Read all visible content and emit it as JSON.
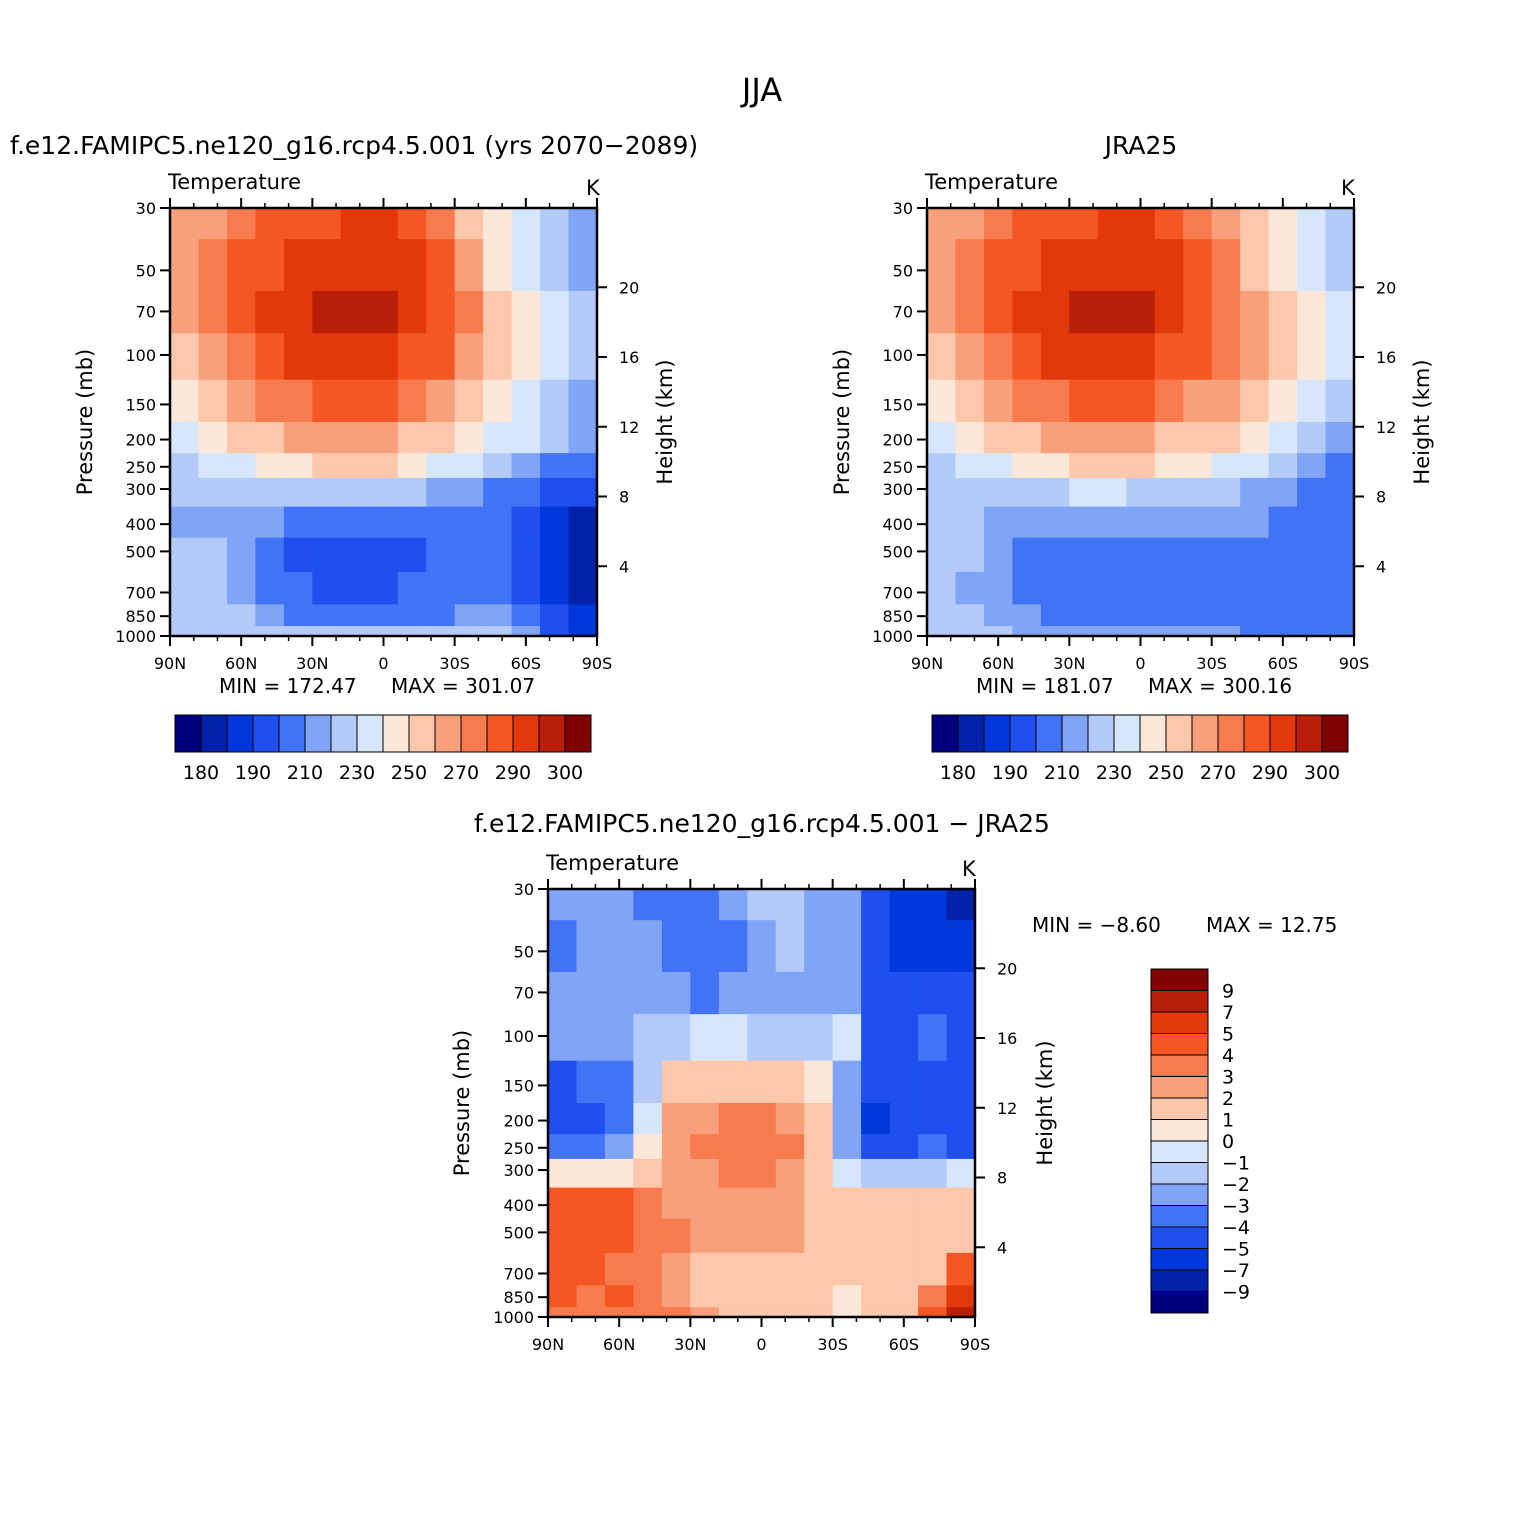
{
  "title": "JJA",
  "colors": {
    "scale": [
      "#00007f",
      "#0021a8",
      "#0037db",
      "#1f4fef",
      "#4272f5",
      "#80a4f6",
      "#b4cbfa",
      "#d7e7fb",
      "#fde7d8",
      "#fcc7ab",
      "#f8a07c",
      "#f77b4e",
      "#f55724",
      "#e1380c",
      "#b81e08",
      "#7f0000"
    ]
  },
  "chart_data": [
    {
      "type": "heatmap",
      "id": "model",
      "title": "f.e12.FAMIPC5.ne120_g16.rcp4.5.001 (yrs 2070−2089)",
      "variable": "Temperature",
      "units": "K",
      "xlabel": "",
      "ylabel": "Pressure (mb)",
      "y2label": "Height (km)",
      "xticks": [
        "90N",
        "60N",
        "30N",
        "0",
        "30S",
        "60S",
        "90S"
      ],
      "yticks": [
        30,
        50,
        70,
        100,
        150,
        200,
        250,
        300,
        400,
        500,
        700,
        850,
        1000
      ],
      "y2ticks": [
        20,
        16,
        12,
        8,
        4
      ],
      "min_label": "MIN = 172.47",
      "max_label": "MAX = 301.07",
      "min": 172.47,
      "max": 301.07,
      "colorbar_labels": [
        "180",
        "190",
        "210",
        "230",
        "250",
        "270",
        "290",
        "300"
      ],
      "grid": [
        [
          10,
          10,
          11,
          12,
          12,
          12,
          13,
          13,
          12,
          11,
          9,
          8,
          7,
          6,
          5
        ],
        [
          10,
          11,
          12,
          12,
          13,
          13,
          13,
          13,
          13,
          12,
          10,
          8,
          7,
          6,
          5
        ],
        [
          10,
          11,
          12,
          13,
          13,
          14,
          14,
          14,
          13,
          12,
          11,
          9,
          8,
          7,
          6
        ],
        [
          9,
          10,
          11,
          12,
          13,
          13,
          13,
          13,
          12,
          12,
          10,
          9,
          8,
          7,
          6
        ],
        [
          8,
          9,
          10,
          11,
          11,
          12,
          12,
          12,
          11,
          10,
          9,
          8,
          7,
          6,
          5
        ],
        [
          7,
          8,
          9,
          9,
          10,
          10,
          10,
          10,
          9,
          9,
          8,
          7,
          7,
          6,
          5
        ],
        [
          6,
          7,
          7,
          8,
          8,
          9,
          9,
          9,
          8,
          7,
          7,
          6,
          5,
          4,
          4
        ],
        [
          6,
          6,
          6,
          6,
          6,
          6,
          6,
          6,
          6,
          5,
          5,
          4,
          4,
          3,
          3
        ],
        [
          5,
          5,
          5,
          5,
          4,
          4,
          4,
          4,
          4,
          4,
          4,
          4,
          3,
          2,
          1
        ],
        [
          6,
          6,
          5,
          4,
          3,
          3,
          3,
          3,
          3,
          4,
          4,
          4,
          3,
          2,
          1
        ],
        [
          6,
          6,
          5,
          4,
          4,
          3,
          3,
          3,
          4,
          4,
          4,
          4,
          3,
          2,
          1
        ],
        [
          6,
          6,
          6,
          5,
          4,
          4,
          4,
          4,
          4,
          4,
          5,
          5,
          4,
          3,
          2
        ],
        [
          6,
          6,
          6,
          6,
          6,
          6,
          6,
          6,
          6,
          6,
          6,
          6,
          5,
          3,
          2
        ]
      ]
    },
    {
      "type": "heatmap",
      "id": "obs",
      "title": "JRA25",
      "variable": "Temperature",
      "units": "K",
      "xlabel": "",
      "ylabel": "Pressure (mb)",
      "y2label": "Height (km)",
      "xticks": [
        "90N",
        "60N",
        "30N",
        "0",
        "30S",
        "60S",
        "90S"
      ],
      "yticks": [
        30,
        50,
        70,
        100,
        150,
        200,
        250,
        300,
        400,
        500,
        700,
        850,
        1000
      ],
      "y2ticks": [
        20,
        16,
        12,
        8,
        4
      ],
      "min_label": "MIN = 181.07",
      "max_label": "MAX = 300.16",
      "min": 181.07,
      "max": 300.16,
      "colorbar_labels": [
        "180",
        "190",
        "210",
        "230",
        "250",
        "270",
        "290",
        "300"
      ],
      "grid": [
        [
          10,
          10,
          11,
          12,
          12,
          12,
          13,
          13,
          12,
          11,
          10,
          9,
          8,
          7,
          6
        ],
        [
          10,
          11,
          12,
          12,
          13,
          13,
          13,
          13,
          13,
          12,
          11,
          9,
          8,
          7,
          6
        ],
        [
          10,
          11,
          12,
          13,
          13,
          14,
          14,
          14,
          13,
          12,
          11,
          10,
          9,
          8,
          7
        ],
        [
          9,
          10,
          11,
          12,
          13,
          13,
          13,
          13,
          12,
          12,
          11,
          10,
          9,
          8,
          7
        ],
        [
          8,
          9,
          10,
          11,
          11,
          12,
          12,
          12,
          11,
          10,
          10,
          9,
          8,
          7,
          6
        ],
        [
          7,
          8,
          9,
          9,
          10,
          10,
          10,
          10,
          9,
          9,
          9,
          8,
          7,
          6,
          5
        ],
        [
          6,
          7,
          7,
          8,
          8,
          9,
          9,
          9,
          8,
          8,
          7,
          7,
          6,
          5,
          4
        ],
        [
          6,
          6,
          6,
          6,
          6,
          7,
          7,
          6,
          6,
          6,
          6,
          5,
          5,
          4,
          4
        ],
        [
          6,
          6,
          5,
          5,
          5,
          5,
          5,
          5,
          5,
          5,
          5,
          5,
          4,
          4,
          4
        ],
        [
          6,
          6,
          5,
          4,
          4,
          4,
          4,
          4,
          4,
          4,
          4,
          4,
          4,
          4,
          4
        ],
        [
          6,
          5,
          5,
          4,
          4,
          4,
          4,
          4,
          4,
          4,
          4,
          4,
          4,
          4,
          4
        ],
        [
          6,
          6,
          5,
          5,
          4,
          4,
          4,
          4,
          4,
          4,
          4,
          4,
          4,
          4,
          4
        ],
        [
          6,
          6,
          6,
          5,
          5,
          5,
          5,
          5,
          5,
          5,
          5,
          4,
          4,
          4,
          4
        ]
      ]
    },
    {
      "type": "heatmap",
      "id": "diff",
      "title": "f.e12.FAMIPC5.ne120_g16.rcp4.5.001 − JRA25",
      "variable": "Temperature",
      "units": "K",
      "xlabel": "",
      "ylabel": "Pressure (mb)",
      "y2label": "Height (km)",
      "xticks": [
        "90N",
        "60N",
        "30N",
        "0",
        "30S",
        "60S",
        "90S"
      ],
      "yticks": [
        30,
        50,
        70,
        100,
        150,
        200,
        250,
        300,
        400,
        500,
        700,
        850,
        1000
      ],
      "y2ticks": [
        20,
        16,
        12,
        8,
        4
      ],
      "min_label": "MIN =   −8.60",
      "max_label": "MAX =   12.75",
      "min": -8.6,
      "max": 12.75,
      "colorbar_labels": [
        "9",
        "7",
        "5",
        "4",
        "3",
        "2",
        "1",
        "0",
        "−1",
        "−2",
        "−3",
        "−4",
        "−5",
        "−7",
        "−9"
      ],
      "grid": [
        [
          5,
          5,
          5,
          4,
          4,
          4,
          5,
          6,
          6,
          5,
          5,
          3,
          2,
          2,
          1
        ],
        [
          4,
          5,
          5,
          5,
          4,
          4,
          4,
          5,
          6,
          5,
          5,
          3,
          2,
          2,
          2
        ],
        [
          5,
          5,
          5,
          5,
          5,
          4,
          5,
          5,
          5,
          5,
          5,
          3,
          3,
          3,
          3
        ],
        [
          5,
          5,
          5,
          6,
          6,
          7,
          7,
          6,
          6,
          6,
          7,
          3,
          3,
          4,
          3
        ],
        [
          3,
          4,
          4,
          6,
          9,
          9,
          9,
          9,
          9,
          8,
          5,
          3,
          3,
          3,
          3
        ],
        [
          3,
          3,
          4,
          7,
          10,
          10,
          11,
          11,
          10,
          9,
          5,
          2,
          3,
          3,
          3
        ],
        [
          4,
          4,
          5,
          8,
          10,
          11,
          11,
          11,
          11,
          9,
          5,
          3,
          3,
          4,
          3
        ],
        [
          8,
          8,
          8,
          9,
          10,
          10,
          11,
          11,
          10,
          9,
          7,
          6,
          6,
          6,
          7
        ],
        [
          12,
          12,
          12,
          11,
          10,
          10,
          10,
          10,
          10,
          9,
          9,
          9,
          9,
          9,
          9
        ],
        [
          12,
          12,
          12,
          11,
          11,
          10,
          10,
          10,
          10,
          9,
          9,
          9,
          9,
          9,
          9
        ],
        [
          12,
          12,
          11,
          11,
          10,
          9,
          9,
          9,
          9,
          9,
          9,
          9,
          9,
          9,
          12
        ],
        [
          12,
          11,
          12,
          11,
          10,
          9,
          9,
          9,
          9,
          9,
          8,
          9,
          9,
          11,
          13
        ],
        [
          11,
          11,
          11,
          11,
          11,
          10,
          9,
          9,
          9,
          9,
          8,
          9,
          9,
          12,
          14
        ]
      ]
    }
  ]
}
